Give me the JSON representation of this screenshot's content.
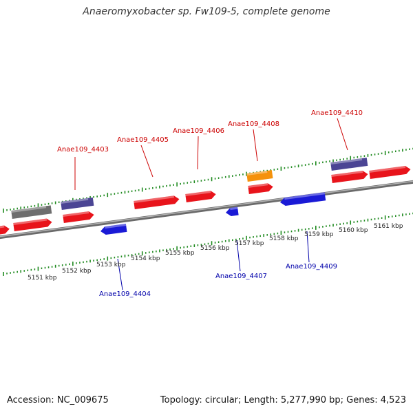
{
  "title": "Anaeromyxobacter sp. Fw109-5, complete genome",
  "footer": {
    "accession": "Accession: NC_009675",
    "info": "Topology: circular; Length: 5,277,990 bp; Genes: 4,523"
  },
  "colors": {
    "forward": "#e8141b",
    "reverse": "#1a1ad6",
    "other": "#4b4594",
    "grey": "#6e6e6e",
    "rna": "#f5920c",
    "tick": "#1f8a1f",
    "backbone": "#8a8a8a",
    "label_forward": "#cc0000",
    "label_reverse": "#0000aa"
  },
  "scale_labels": [
    "5151 kbp",
    "5152 kbp",
    "5153 kbp",
    "5154 kbp",
    "5155 kbp",
    "5156 kbp",
    "5157 kbp",
    "5158 kbp",
    "5159 kbp",
    "5160 kbp",
    "5161 kbp"
  ],
  "gene_labels": [
    {
      "name": "Anae109_4403",
      "strand": "forward"
    },
    {
      "name": "Anae109_4404",
      "strand": "reverse"
    },
    {
      "name": "Anae109_4405",
      "strand": "forward"
    },
    {
      "name": "Anae109_4406",
      "strand": "forward"
    },
    {
      "name": "Anae109_4407",
      "strand": "reverse"
    },
    {
      "name": "Anae109_4408",
      "strand": "forward"
    },
    {
      "name": "Anae109_4409",
      "strand": "reverse"
    },
    {
      "name": "Anae109_4410",
      "strand": "forward"
    }
  ],
  "features": [
    {
      "id": "f1",
      "type": "forward"
    },
    {
      "id": "f2",
      "type": "forward"
    },
    {
      "id": "f3",
      "type": "forward"
    },
    {
      "id": "f4",
      "type": "forward"
    },
    {
      "id": "f5",
      "type": "forward"
    },
    {
      "id": "f6",
      "type": "forward"
    },
    {
      "id": "f7",
      "type": "forward"
    },
    {
      "id": "f8",
      "type": "forward"
    },
    {
      "id": "r1",
      "type": "reverse"
    },
    {
      "id": "r2",
      "type": "reverse"
    },
    {
      "id": "r3",
      "type": "reverse"
    },
    {
      "id": "o1",
      "type": "grey"
    },
    {
      "id": "o2",
      "type": "other"
    },
    {
      "id": "o3",
      "type": "other"
    },
    {
      "id": "o4",
      "type": "rna"
    }
  ]
}
